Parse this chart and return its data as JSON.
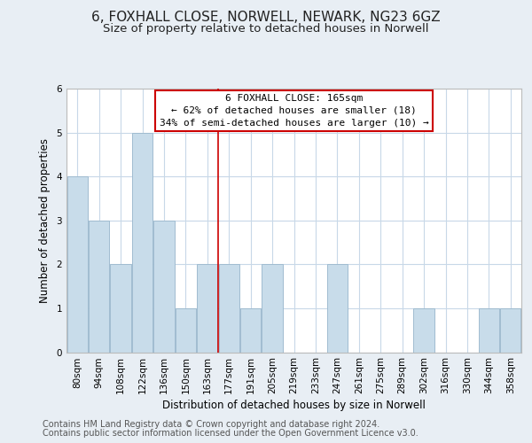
{
  "title": "6, FOXHALL CLOSE, NORWELL, NEWARK, NG23 6GZ",
  "subtitle": "Size of property relative to detached houses in Norwell",
  "xlabel": "Distribution of detached houses by size in Norwell",
  "ylabel": "Number of detached properties",
  "categories": [
    "80sqm",
    "94sqm",
    "108sqm",
    "122sqm",
    "136sqm",
    "150sqm",
    "163sqm",
    "177sqm",
    "191sqm",
    "205sqm",
    "219sqm",
    "233sqm",
    "247sqm",
    "261sqm",
    "275sqm",
    "289sqm",
    "302sqm",
    "316sqm",
    "330sqm",
    "344sqm",
    "358sqm"
  ],
  "values": [
    4,
    3,
    2,
    5,
    3,
    1,
    2,
    2,
    1,
    2,
    0,
    0,
    2,
    0,
    0,
    0,
    1,
    0,
    0,
    1,
    1
  ],
  "bar_color": "#c8dcea",
  "bar_edge_color": "#a0bcd0",
  "ylim": [
    0,
    6
  ],
  "yticks": [
    0,
    1,
    2,
    3,
    4,
    5,
    6
  ],
  "annotation_title": "6 FOXHALL CLOSE: 165sqm",
  "annotation_line1": "← 62% of detached houses are smaller (18)",
  "annotation_line2": "34% of semi-detached houses are larger (10) →",
  "annotation_box_color": "#ffffff",
  "annotation_box_edge": "#cc0000",
  "vline_index": 6.5,
  "footer1": "Contains HM Land Registry data © Crown copyright and database right 2024.",
  "footer2": "Contains public sector information licensed under the Open Government Licence v3.0.",
  "background_color": "#e8eef4",
  "plot_background": "#ffffff",
  "grid_color": "#c8d8e8",
  "title_fontsize": 11,
  "subtitle_fontsize": 9.5,
  "axis_label_fontsize": 8.5,
  "tick_fontsize": 7.5,
  "footer_fontsize": 7
}
